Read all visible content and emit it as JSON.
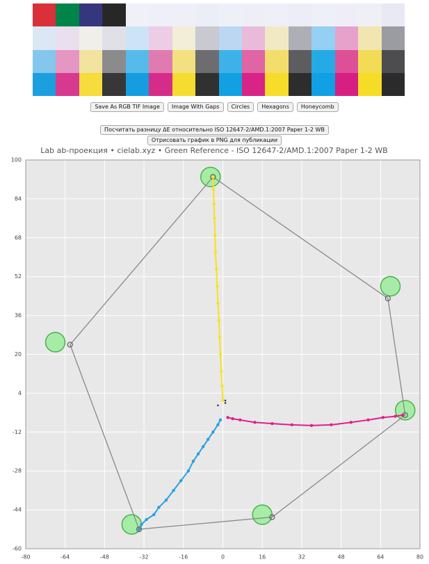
{
  "toolbar": {
    "buttons": [
      "Save As RGB TIF Image",
      "Image With Gaps",
      "Circles",
      "Hexagons",
      "Honeycomb"
    ]
  },
  "actions": [
    "Посчитать разницу ΔE относительно ISO 12647-2/AMD.1:2007 Paper 1-2 WB",
    "Отрисовать график в PNG для публикации"
  ],
  "chart_data": {
    "type": "line",
    "title": "Lab ab-проекция  •  cielab.xyz  •  Green Reference - ISO 12647-2/AMD.1:2007 Paper 1-2 WB",
    "xlim": [
      -80,
      80
    ],
    "ylim": [
      -60,
      100
    ],
    "xticks": [
      -80,
      -64,
      -48,
      -32,
      -16,
      0,
      16,
      32,
      48,
      64,
      80
    ],
    "yticks": [
      -60,
      -44,
      -28,
      -12,
      4,
      20,
      36,
      52,
      68,
      84,
      100
    ],
    "grid": true,
    "series": [
      {
        "color": "#4caf50",
        "marker": "bubble",
        "line": false,
        "x": [
          -5,
          68,
          74,
          16,
          -37,
          -68
        ],
        "values": [
          93,
          48,
          -3,
          -46,
          -50,
          25
        ]
      },
      {
        "color": "#888888",
        "marker": "ring",
        "line": true,
        "closed": true,
        "x": [
          -4,
          67,
          74,
          20,
          -34,
          -62
        ],
        "values": [
          93,
          43,
          -5,
          -47,
          -52,
          24
        ]
      },
      {
        "color": "#f7e21e",
        "marker": "dot",
        "line": true,
        "x": [
          0,
          -0.3,
          -0.6,
          -1,
          -1.3,
          -1.6,
          -2,
          -2.3,
          -2.6,
          -3,
          -3.2,
          -3.4,
          -3.6,
          -3.8,
          -4
        ],
        "values": [
          1,
          7,
          13,
          20,
          27,
          34,
          41,
          48,
          55,
          62,
          69,
          76,
          82,
          88,
          93
        ]
      },
      {
        "color": "#e0208a",
        "marker": "dot",
        "line": true,
        "x": [
          2,
          4,
          7,
          13,
          20,
          28,
          36,
          44,
          52,
          59,
          65,
          70,
          73
        ],
        "values": [
          -6,
          -6.5,
          -7,
          -8,
          -8.5,
          -9,
          -9.3,
          -9,
          -8,
          -7,
          -6,
          -5.5,
          -5
        ]
      },
      {
        "color": "#2a9fe0",
        "marker": "dot",
        "line": true,
        "x": [
          -1,
          -2,
          -4,
          -6,
          -8,
          -10,
          -12,
          -14,
          -17,
          -20,
          -23,
          -26,
          -28,
          -31,
          -33,
          -34
        ],
        "values": [
          -7,
          -9,
          -12,
          -15,
          -18,
          -21,
          -24,
          -28,
          -32,
          -36,
          -40,
          -43,
          -46,
          -48,
          -50,
          -52
        ]
      },
      {
        "color": "#333333",
        "marker": "dot",
        "line": false,
        "x": [
          1,
          1,
          -2
        ],
        "values": [
          0,
          1,
          -1
        ]
      }
    ]
  }
}
